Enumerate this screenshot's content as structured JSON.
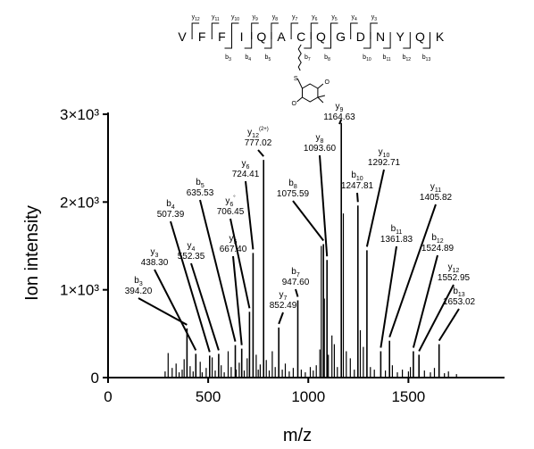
{
  "peptide": {
    "residues": [
      "V",
      "F",
      "F",
      "I",
      "Q",
      "A",
      "C",
      "Q",
      "G",
      "D",
      "N",
      "Y",
      "Q",
      "K"
    ],
    "y_ions": [
      {
        "label": "y",
        "sub": "12",
        "after": 1
      },
      {
        "label": "y",
        "sub": "11",
        "after": 2
      },
      {
        "label": "y",
        "sub": "10",
        "after": 3
      },
      {
        "label": "y",
        "sub": "9",
        "after": 4
      },
      {
        "label": "y",
        "sub": "8",
        "after": 5
      },
      {
        "label": "y",
        "sub": "7",
        "after": 6
      },
      {
        "label": "y",
        "sub": "6",
        "after": 7
      },
      {
        "label": "y",
        "sub": "5",
        "after": 8
      },
      {
        "label": "y",
        "sub": "4",
        "after": 9
      },
      {
        "label": "y",
        "sub": "3",
        "after": 10
      }
    ],
    "b_ions": [
      {
        "label": "b",
        "sub": "3",
        "after": 2
      },
      {
        "label": "b",
        "sub": "4",
        "after": 3
      },
      {
        "label": "b",
        "sub": "5",
        "after": 4
      },
      {
        "label": "b",
        "sub": "7",
        "after": 6
      },
      {
        "label": "b",
        "sub": "8",
        "after": 7
      },
      {
        "label": "b",
        "sub": "10",
        "after": 9
      },
      {
        "label": "b",
        "sub": "11",
        "after": 10
      },
      {
        "label": "b",
        "sub": "12",
        "after": 11
      },
      {
        "label": "b",
        "sub": "13",
        "after": 12
      }
    ],
    "modification": {
      "residue_index": 6,
      "linker_atom": "S",
      "carbonyl_atoms": [
        "O",
        "O"
      ]
    }
  },
  "chart_data": {
    "type": "bar",
    "xlabel": "m/z",
    "ylabel": "Ion intensity",
    "xlim": [
      0,
      1980
    ],
    "ylim": [
      0,
      3000
    ],
    "xticks": [
      {
        "value": 0,
        "label": "0"
      },
      {
        "value": 500,
        "label": "500"
      },
      {
        "value": 1000,
        "label": "1000"
      },
      {
        "value": 1500,
        "label": "1500"
      }
    ],
    "yticks": [
      {
        "value": 0,
        "label": "0"
      },
      {
        "value": 1000,
        "label": "1×10³"
      },
      {
        "value": 2000,
        "label": "2×10³"
      },
      {
        "value": 3000,
        "label": "3×10³"
      }
    ],
    "annotated_peaks": [
      {
        "ion": "b",
        "sub": "3",
        "sup": "",
        "mz": 394.2,
        "label": "394.20",
        "intensity": 560,
        "lx": 155,
        "ly": 329
      },
      {
        "ion": "y",
        "sub": "3",
        "sup": "",
        "mz": 438.3,
        "label": "438.30",
        "intensity": 270,
        "lx": 173,
        "ly": 297
      },
      {
        "ion": "b",
        "sub": "4",
        "sup": "",
        "mz": 507.39,
        "label": "507.39",
        "intensity": 250,
        "lx": 191,
        "ly": 243
      },
      {
        "ion": "y",
        "sub": "4",
        "sup": "",
        "mz": 552.35,
        "label": "552.35",
        "intensity": 270,
        "lx": 214,
        "ly": 290
      },
      {
        "ion": "b",
        "sub": "5",
        "sup": "",
        "mz": 635.53,
        "label": "635.53",
        "intensity": 370,
        "lx": 224,
        "ly": 219
      },
      {
        "ion": "y",
        "sub": "5",
        "sup": "",
        "mz": 667.4,
        "label": "667.40",
        "intensity": 330,
        "lx": 261,
        "ly": 282
      },
      {
        "ion": "y",
        "sub": "6",
        "sup": "°",
        "mz": 706.45,
        "label": "706.45",
        "intensity": 750,
        "lx": 258,
        "ly": 240
      },
      {
        "ion": "y",
        "sub": "6",
        "sup": "",
        "mz": 724.41,
        "label": "724.41",
        "intensity": 1420,
        "lx": 275,
        "ly": 198
      },
      {
        "ion": "y",
        "sub": "12",
        "sup": "(2+)",
        "mz": 777.02,
        "label": "777.02",
        "intensity": 2480,
        "lx": 289,
        "ly": 163
      },
      {
        "ion": "y",
        "sub": "7",
        "sup": "",
        "mz": 852.49,
        "label": "852.49",
        "intensity": 570,
        "lx": 317,
        "ly": 345
      },
      {
        "ion": "b",
        "sub": "7",
        "sup": "",
        "mz": 947.6,
        "label": "947.60",
        "intensity": 880,
        "lx": 331,
        "ly": 319
      },
      {
        "ion": "b",
        "sub": "8",
        "sup": "",
        "mz": 1075.59,
        "label": "1075.59",
        "intensity": 1520,
        "lx": 328,
        "ly": 220
      },
      {
        "ion": "y",
        "sub": "8",
        "sup": "",
        "mz": 1093.6,
        "label": "1093.60",
        "intensity": 1340,
        "lx": 358,
        "ly": 169
      },
      {
        "ion": "y",
        "sub": "9",
        "sup": "",
        "mz": 1164.63,
        "label": "1164.63",
        "intensity": 2900,
        "lx": 380,
        "ly": 134
      },
      {
        "ion": "b",
        "sub": "10",
        "sup": "",
        "mz": 1247.81,
        "label": "1247.81",
        "intensity": 1960,
        "lx": 400,
        "ly": 211
      },
      {
        "ion": "y",
        "sub": "10",
        "sup": "",
        "mz": 1292.71,
        "label": "1292.71",
        "intensity": 1450,
        "lx": 430,
        "ly": 185
      },
      {
        "ion": "b",
        "sub": "11",
        "sup": "",
        "mz": 1361.83,
        "label": "1361.83",
        "intensity": 300,
        "lx": 444,
        "ly": 271
      },
      {
        "ion": "y",
        "sub": "11",
        "sup": "",
        "mz": 1405.82,
        "label": "1405.82",
        "intensity": 420,
        "lx": 488,
        "ly": 224
      },
      {
        "ion": "b",
        "sub": "12",
        "sup": "",
        "mz": 1524.89,
        "label": "1524.89",
        "intensity": 300,
        "lx": 490,
        "ly": 281
      },
      {
        "ion": "y",
        "sub": "12",
        "sup": "",
        "mz": 1552.95,
        "label": "1552.95",
        "intensity": 260,
        "lx": 508,
        "ly": 314
      },
      {
        "ion": "b",
        "sub": "13",
        "sup": "",
        "mz": 1653.02,
        "label": "1653.02",
        "intensity": 380,
        "lx": 514,
        "ly": 341
      }
    ],
    "other_peaks": [
      [
        285,
        70
      ],
      [
        300,
        280
      ],
      [
        320,
        110
      ],
      [
        340,
        160
      ],
      [
        355,
        60
      ],
      [
        370,
        90
      ],
      [
        380,
        210
      ],
      [
        410,
        130
      ],
      [
        425,
        70
      ],
      [
        460,
        180
      ],
      [
        470,
        60
      ],
      [
        490,
        110
      ],
      [
        520,
        230
      ],
      [
        535,
        80
      ],
      [
        565,
        140
      ],
      [
        580,
        60
      ],
      [
        600,
        300
      ],
      [
        615,
        120
      ],
      [
        640,
        90
      ],
      [
        655,
        170
      ],
      [
        680,
        80
      ],
      [
        695,
        220
      ],
      [
        740,
        260
      ],
      [
        750,
        90
      ],
      [
        760,
        150
      ],
      [
        790,
        200
      ],
      [
        805,
        80
      ],
      [
        820,
        300
      ],
      [
        835,
        120
      ],
      [
        870,
        90
      ],
      [
        885,
        160
      ],
      [
        905,
        70
      ],
      [
        925,
        110
      ],
      [
        965,
        90
      ],
      [
        985,
        60
      ],
      [
        1010,
        120
      ],
      [
        1025,
        80
      ],
      [
        1040,
        140
      ],
      [
        1058,
        320
      ],
      [
        1065,
        1500
      ],
      [
        1080,
        900
      ],
      [
        1100,
        260
      ],
      [
        1118,
        480
      ],
      [
        1130,
        380
      ],
      [
        1145,
        120
      ],
      [
        1175,
        1870
      ],
      [
        1190,
        300
      ],
      [
        1210,
        220
      ],
      [
        1230,
        90
      ],
      [
        1260,
        540
      ],
      [
        1275,
        350
      ],
      [
        1310,
        120
      ],
      [
        1330,
        90
      ],
      [
        1385,
        80
      ],
      [
        1420,
        140
      ],
      [
        1445,
        60
      ],
      [
        1470,
        90
      ],
      [
        1500,
        70
      ],
      [
        1510,
        120
      ],
      [
        1580,
        80
      ],
      [
        1610,
        60
      ],
      [
        1630,
        110
      ],
      [
        1680,
        50
      ],
      [
        1700,
        70
      ],
      [
        1740,
        40
      ]
    ]
  }
}
